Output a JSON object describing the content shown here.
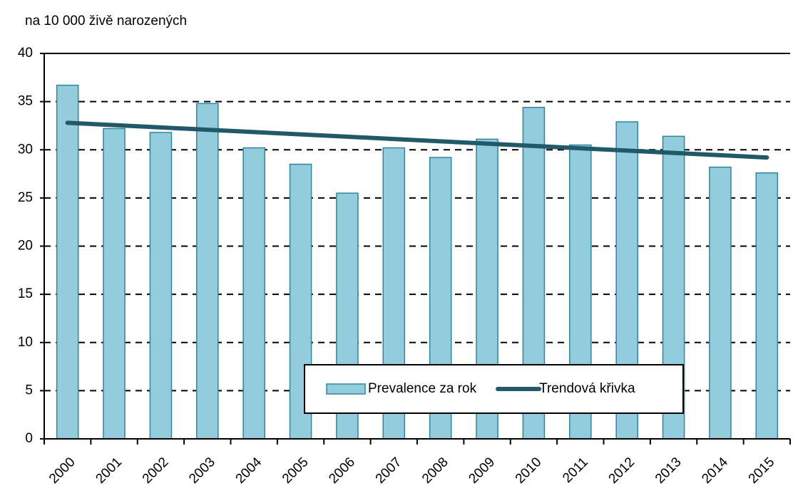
{
  "chart_data": {
    "type": "bar",
    "y_label": "na 10 000 živě narozených",
    "categories": [
      "2000",
      "2001",
      "2002",
      "2003",
      "2004",
      "2005",
      "2006",
      "2007",
      "2008",
      "2009",
      "2010",
      "2011",
      "2012",
      "2013",
      "2014",
      "2015"
    ],
    "series": [
      {
        "name": "Prevalence za rok",
        "type": "bar",
        "color": "#93cddd",
        "values": [
          36.7,
          32.2,
          31.8,
          34.8,
          30.2,
          28.5,
          25.5,
          30.2,
          29.2,
          31.1,
          34.4,
          30.5,
          32.9,
          31.4,
          28.2,
          27.6
        ]
      },
      {
        "name": "Trendová křivka",
        "type": "line",
        "color": "#215968",
        "values": [
          32.8,
          32.56,
          32.32,
          32.08,
          31.84,
          31.6,
          31.36,
          31.12,
          30.88,
          30.64,
          30.4,
          30.16,
          29.92,
          29.68,
          29.44,
          29.2
        ]
      }
    ],
    "ylim": [
      0,
      40
    ],
    "yticks": [
      0,
      5,
      10,
      15,
      20,
      25,
      30,
      35,
      40
    ],
    "grid": true,
    "legend": "bottom"
  }
}
